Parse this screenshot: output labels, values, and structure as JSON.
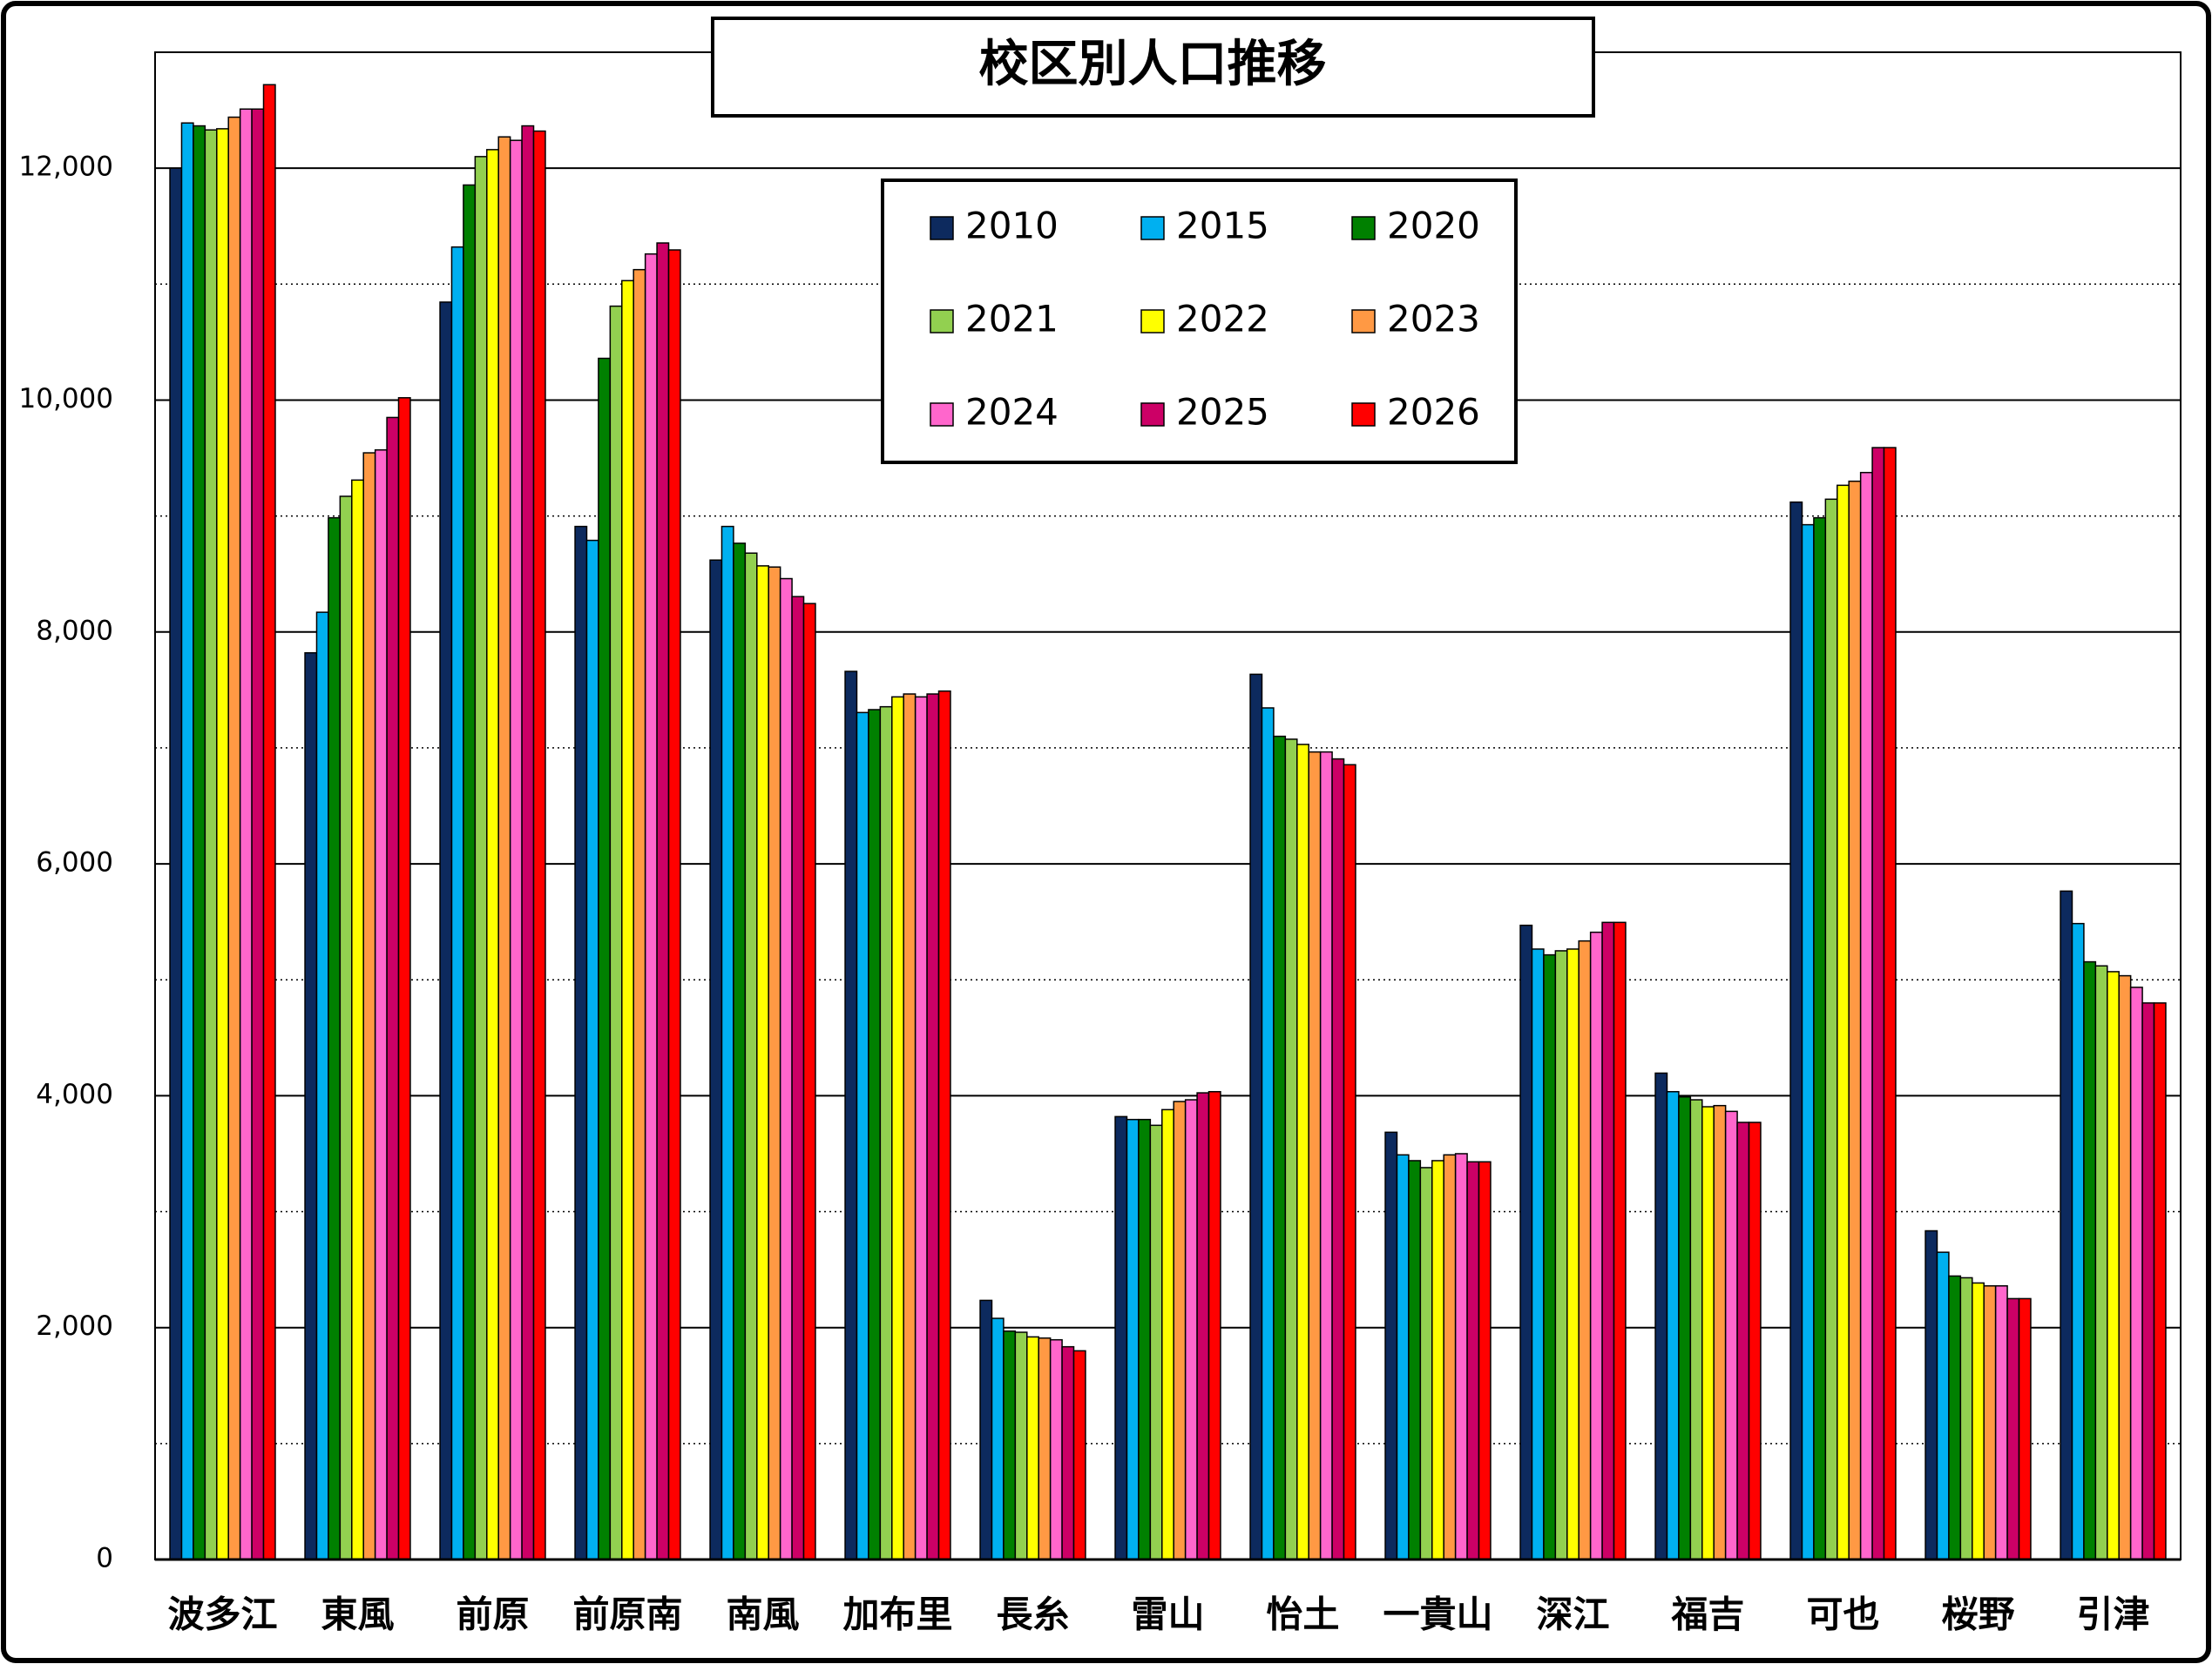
{
  "chart_data": {
    "type": "bar",
    "title": "校区別人口推移",
    "categories": [
      "波多江",
      "東風",
      "前原",
      "前原南",
      "南風",
      "加布里",
      "長糸",
      "雷山",
      "怡土",
      "一貴山",
      "深江",
      "福吉",
      "可也",
      "桜野",
      "引津"
    ],
    "series": [
      {
        "name": "2010",
        "color": "#0d2a5e",
        "values": [
          12000,
          7820,
          10845,
          8910,
          8620,
          7660,
          2235,
          3820,
          7635,
          3685,
          5470,
          4195,
          9120,
          2835,
          5765
        ]
      },
      {
        "name": "2015",
        "color": "#00b0f0",
        "values": [
          12390,
          8170,
          11320,
          8790,
          8910,
          7305,
          2080,
          3795,
          7345,
          3490,
          5265,
          4035,
          8925,
          2650,
          5485
        ]
      },
      {
        "name": "2020",
        "color": "#008000",
        "values": [
          12365,
          8985,
          11855,
          10360,
          8765,
          7330,
          1970,
          3795,
          7100,
          3440,
          5215,
          3990,
          8985,
          2445,
          5155
        ]
      },
      {
        "name": "2021",
        "color": "#92d050",
        "values": [
          12330,
          9170,
          12100,
          10810,
          8680,
          7355,
          1960,
          3745,
          7075,
          3380,
          5250,
          3965,
          9145,
          2430,
          5120
        ]
      },
      {
        "name": "2022",
        "color": "#ffff00",
        "values": [
          12340,
          9310,
          12160,
          11030,
          8570,
          7440,
          1920,
          3880,
          7030,
          3440,
          5265,
          3905,
          9265,
          2385,
          5070
        ]
      },
      {
        "name": "2023",
        "color": "#ff9944",
        "values": [
          12440,
          9545,
          12270,
          11125,
          8560,
          7465,
          1910,
          3950,
          6965,
          3490,
          5335,
          3915,
          9300,
          2360,
          5035
        ]
      },
      {
        "name": "2024",
        "color": "#ff66cc",
        "values": [
          12510,
          9570,
          12240,
          11260,
          8460,
          7440,
          1895,
          3965,
          6965,
          3500,
          5410,
          3865,
          9375,
          2360,
          4935
        ]
      },
      {
        "name": "2025",
        "color": "#cc0066",
        "values": [
          12510,
          9850,
          12365,
          11355,
          8305,
          7465,
          1835,
          4025,
          6905,
          3430,
          5495,
          3770,
          9590,
          2250,
          4800
        ]
      },
      {
        "name": "2026",
        "color": "#ff0000",
        "values": [
          12720,
          10020,
          12320,
          11295,
          8245,
          7490,
          1800,
          4035,
          6855,
          3430,
          5495,
          3770,
          9590,
          2250,
          4800
        ]
      }
    ],
    "ylim": [
      0,
      13000
    ],
    "yticks": [
      0,
      {
        "value": 2000,
        "label": "2,000"
      },
      {
        "value": 4000,
        "label": "4,000"
      },
      {
        "value": 6000,
        "label": "6,000"
      },
      {
        "value": 8000,
        "label": "8,000"
      },
      {
        "value": 10000,
        "label": "10,000"
      },
      {
        "value": 12000,
        "label": "12,000"
      }
    ],
    "grid": true
  }
}
